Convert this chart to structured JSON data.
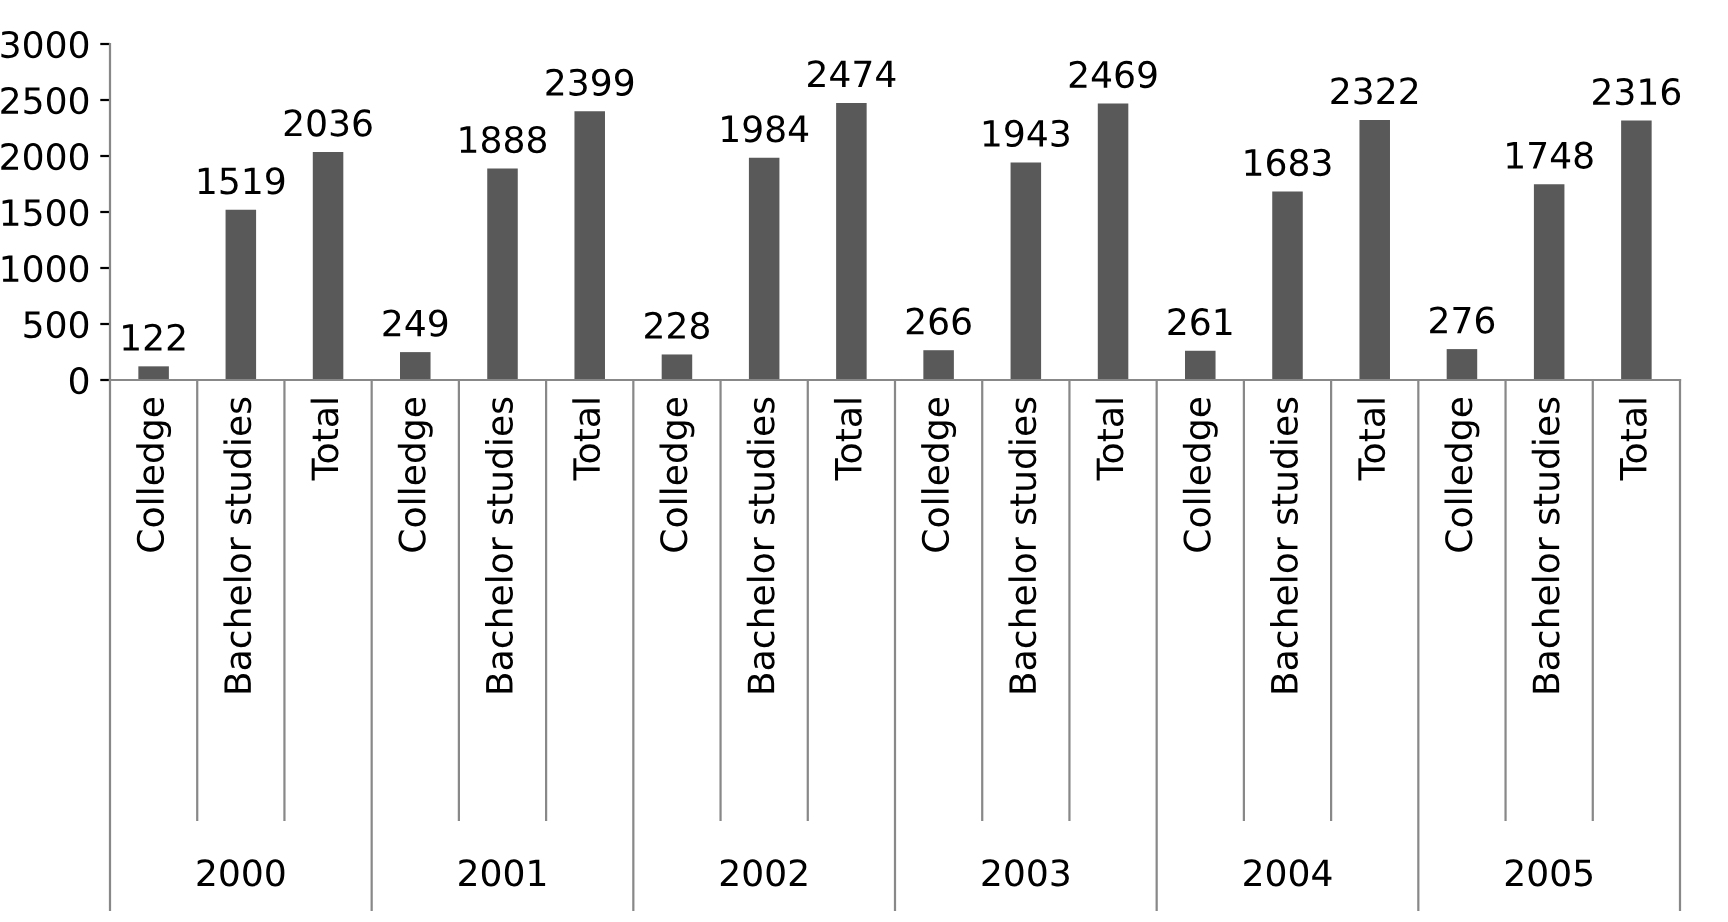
{
  "chart_data": {
    "type": "bar",
    "categories": [
      "Colledge",
      "Bachelor studies",
      "Total",
      "Colledge",
      "Bachelor studies",
      "Total",
      "Colledge",
      "Bachelor studies",
      "Total",
      "Colledge",
      "Bachelor studies",
      "Total",
      "Colledge",
      "Bachelor studies",
      "Total",
      "Colledge",
      "Bachelor studies",
      "Total"
    ],
    "values": [
      122,
      1519,
      2036,
      249,
      1888,
      2399,
      228,
      1984,
      2474,
      266,
      1943,
      2469,
      261,
      1683,
      2322,
      276,
      1748,
      2316
    ],
    "color": "#595959",
    "annotations": [
      "2000",
      "2001",
      "2002",
      "2003",
      "2004",
      "2005"
    ],
    "ylim": [
      0,
      3000
    ],
    "yticks": [
      0,
      500,
      1000,
      1500,
      2000,
      2500,
      3000
    ],
    "grid": false,
    "legend": false,
    "data_labels": true
  }
}
